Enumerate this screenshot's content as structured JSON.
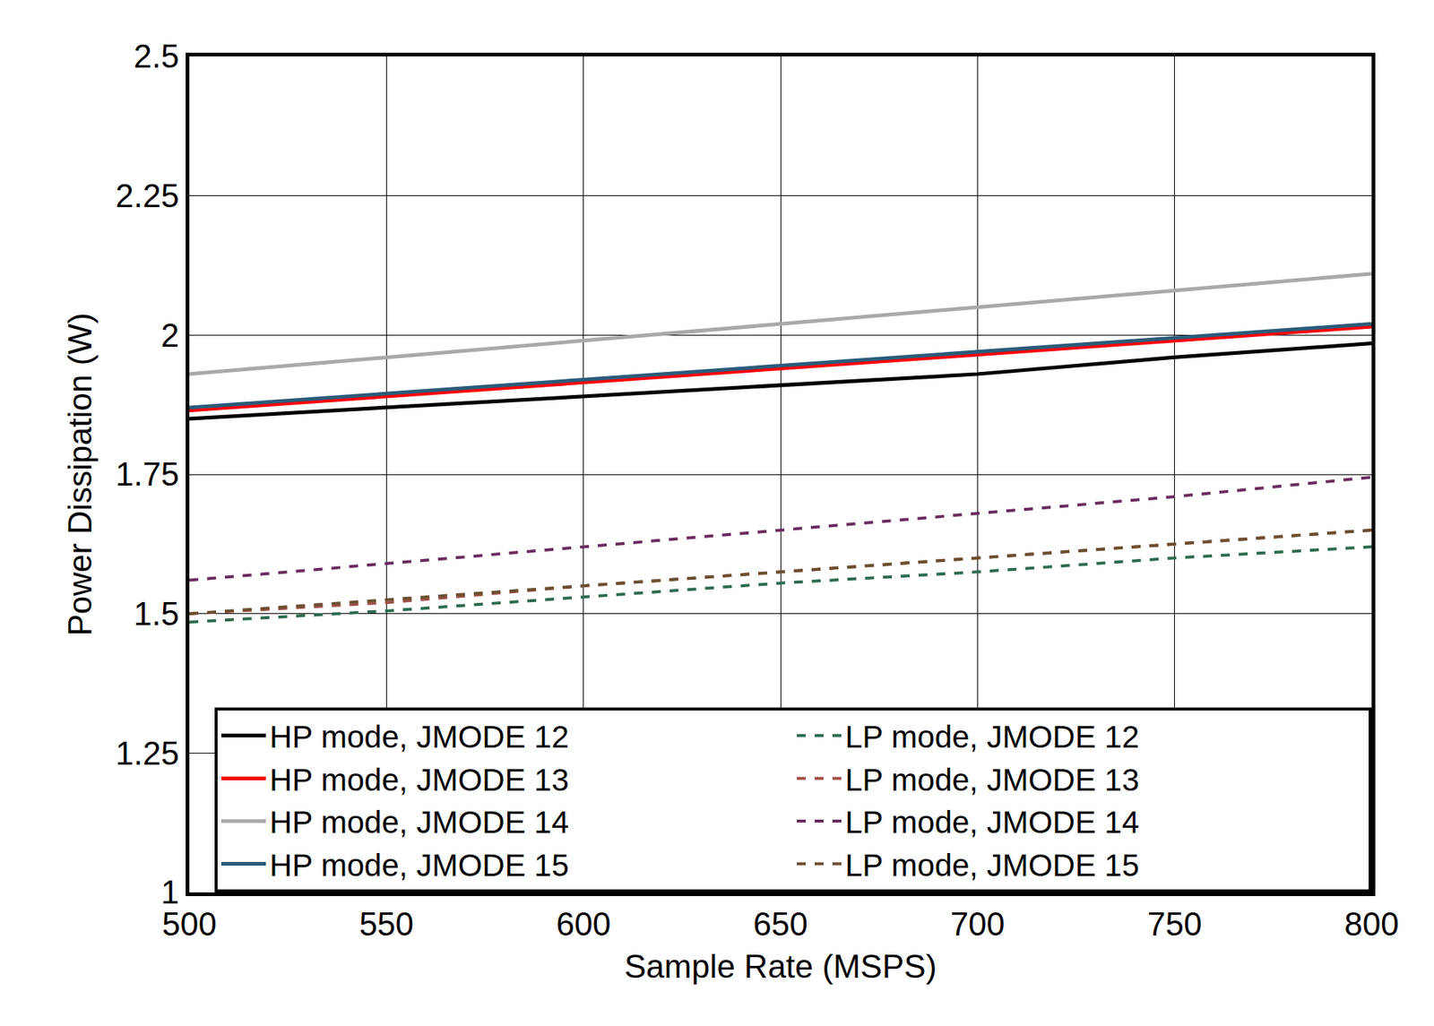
{
  "chart_data": {
    "type": "line",
    "x_label": "Sample Rate (MSPS)",
    "y_label": "Power Dissipation (W)",
    "x": [
      500,
      550,
      600,
      650,
      700,
      750,
      800
    ],
    "series": [
      {
        "name": "HP mode, JMODE 12",
        "color": "#000000",
        "line_style": "solid",
        "values": [
          1.85,
          1.87,
          1.89,
          1.91,
          1.93,
          1.96,
          1.985
        ]
      },
      {
        "name": "HP mode, JMODE 13",
        "color": "#ff0000",
        "line_style": "solid",
        "values": [
          1.865,
          1.89,
          1.915,
          1.94,
          1.965,
          1.99,
          2.015
        ]
      },
      {
        "name": "HP mode, JMODE 14",
        "color": "#a9a9a9",
        "line_style": "solid",
        "values": [
          1.93,
          1.96,
          1.99,
          2.02,
          2.05,
          2.08,
          2.11
        ]
      },
      {
        "name": "HP mode, JMODE 15",
        "color": "#2b5c7a",
        "line_style": "solid",
        "values": [
          1.87,
          1.895,
          1.92,
          1.945,
          1.97,
          1.995,
          2.02
        ]
      },
      {
        "name": "LP mode, JMODE 12",
        "color": "#2e6b4f",
        "line_style": "dashed",
        "values": [
          1.485,
          1.505,
          1.53,
          1.555,
          1.575,
          1.6,
          1.62
        ]
      },
      {
        "name": "LP mode, JMODE 13",
        "color": "#a0504a",
        "line_style": "dashed",
        "values": [
          1.5,
          1.52,
          1.55,
          1.575,
          1.6,
          1.625,
          1.65
        ]
      },
      {
        "name": "LP mode, JMODE 14",
        "color": "#6b2c5f",
        "line_style": "dashed",
        "values": [
          1.56,
          1.59,
          1.62,
          1.65,
          1.68,
          1.71,
          1.745
        ]
      },
      {
        "name": "LP mode, JMODE 15",
        "color": "#6b5030",
        "line_style": "dashed",
        "values": [
          1.5,
          1.525,
          1.55,
          1.575,
          1.6,
          1.625,
          1.65
        ]
      }
    ],
    "xlim": [
      500,
      800
    ],
    "xticks": [
      500,
      550,
      600,
      650,
      700,
      750,
      800
    ],
    "ylim": [
      1,
      2.5
    ],
    "yticks": [
      1,
      1.25,
      1.5,
      1.75,
      2,
      2.25,
      2.5
    ],
    "grid": true,
    "legend": "lower right"
  }
}
